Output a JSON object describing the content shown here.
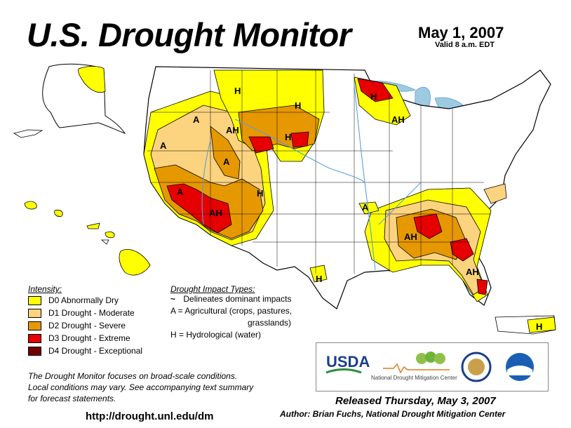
{
  "header": {
    "title": "U.S. Drought Monitor",
    "date": "May 1, 2007",
    "valid": "Valid 8 a.m. EDT"
  },
  "colors": {
    "d0": "#ffff00",
    "d1": "#fcd37f",
    "d2": "#e69800",
    "d3": "#e60000",
    "d4": "#730000",
    "water": "#9ecae1",
    "rivers": "#5aa0dc",
    "borders": "#000000"
  },
  "legend": {
    "intensity_heading": "Intensity:",
    "items": [
      {
        "label": "D0 Abnormally Dry",
        "color": "#ffff00"
      },
      {
        "label": "D1 Drought - Moderate",
        "color": "#fcd37f"
      },
      {
        "label": "D2 Drought - Severe",
        "color": "#e69800"
      },
      {
        "label": "D3 Drought - Extreme",
        "color": "#e60000"
      },
      {
        "label": "D4 Drought - Exceptional",
        "color": "#730000"
      }
    ],
    "impact_heading": "Drought Impact Types:",
    "impact_lines": [
      "Delineates dominant impacts",
      "A = Agricultural (crops, pastures,",
      "grasslands)",
      "H = Hydrological (water)"
    ]
  },
  "map_labels": [
    "A",
    "A",
    "A",
    "AH",
    "H",
    "H",
    "H",
    "AH",
    "A",
    "H",
    "AH",
    "A",
    "AH",
    "AH",
    "H",
    "H",
    "H"
  ],
  "disclaimer": [
    "The Drought Monitor focuses on broad-scale conditions.",
    "Local conditions may vary.  See accompanying text summary",
    "for forecast statements."
  ],
  "footer": {
    "url": "http://drought.unl.edu/dm",
    "released": "Released Thursday, May 3, 2007",
    "author": "Author: Brian Fuchs, National Drought Mitigation Center"
  },
  "logos": {
    "usda": "USDA",
    "ndmc": "National Drought Mitigation Center"
  }
}
